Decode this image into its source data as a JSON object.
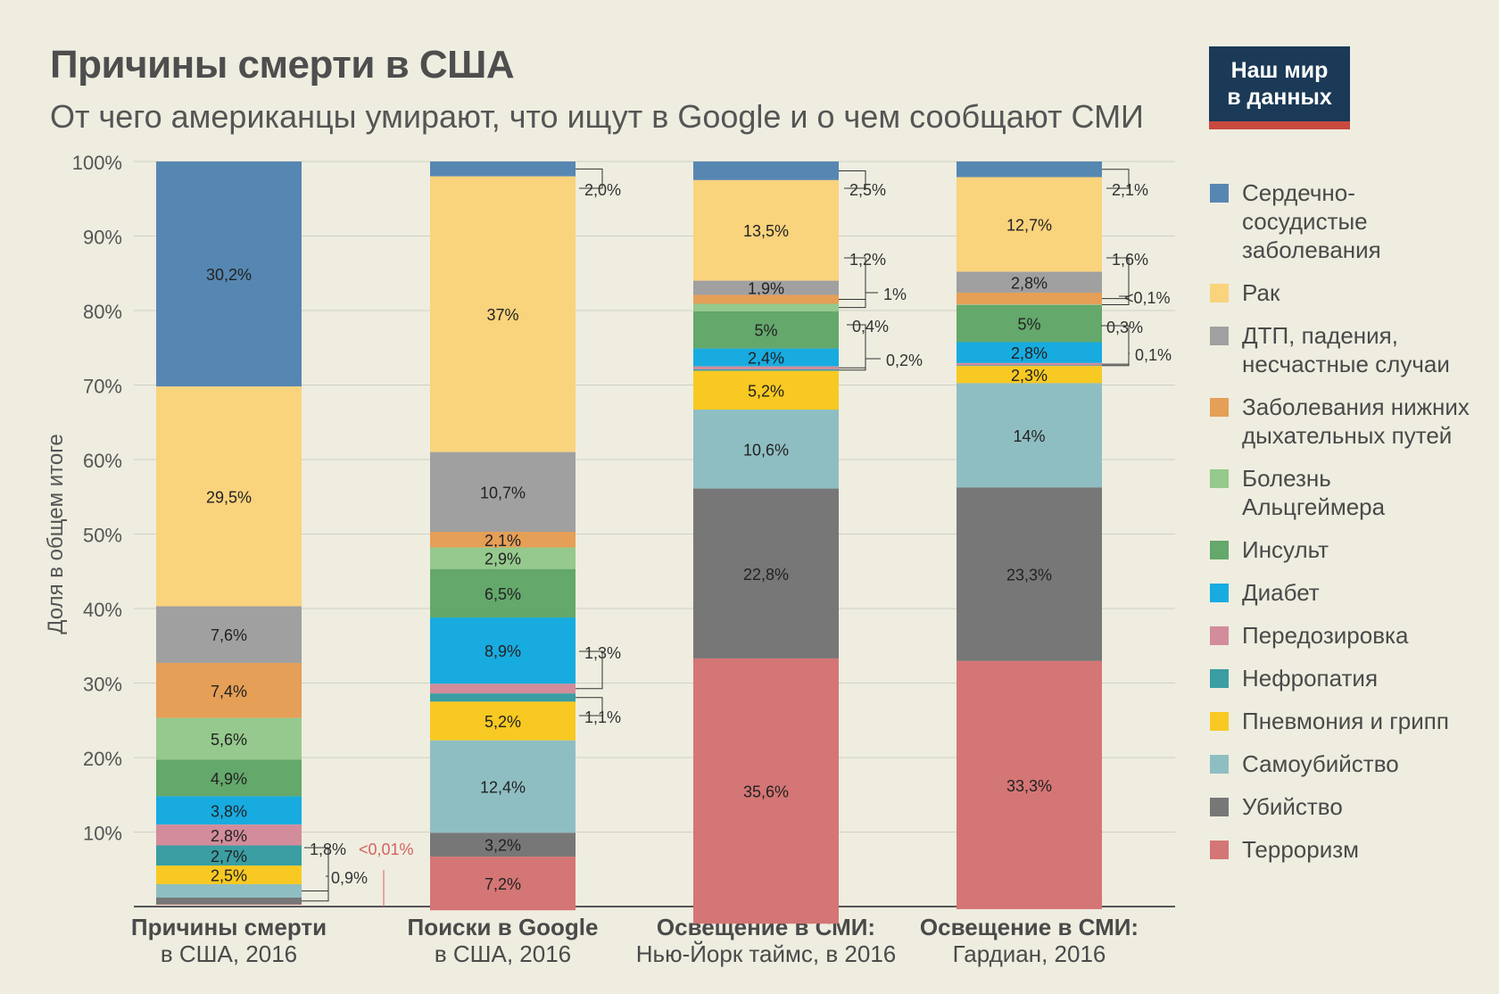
{
  "header": {
    "title": "Причины смерти в США",
    "subtitle": "От чего американцы умирают, что ищут в Google и о чем сообщают СМИ",
    "brand_line1": "Наш мир",
    "brand_line2": "в данных"
  },
  "legend": [
    {
      "label": "Сердечно-\nсосудистые\nзаболевания",
      "color": "#5687b2"
    },
    {
      "label": "Рак",
      "color": "#fad37d"
    },
    {
      "label": "ДТП, падения,\nнесчастные случаи",
      "color": "#a0a0a0"
    },
    {
      "label": "Заболевания нижних\nдыхательных путей",
      "color": "#e59f57"
    },
    {
      "label": "Болезнь\nАльцгеймера",
      "color": "#95c98d"
    },
    {
      "label": "Инсульт",
      "color": "#64a86b"
    },
    {
      "label": "Диабет",
      "color": "#18abe0"
    },
    {
      "label": "Передозировка",
      "color": "#d28c9b"
    },
    {
      "label": "Нефропатия",
      "color": "#3a9ea2"
    },
    {
      "label": "Пневмония и грипп",
      "color": "#f8c922"
    },
    {
      "label": "Самоубийство",
      "color": "#8fbec2"
    },
    {
      "label": "Убийство",
      "color": "#777777"
    },
    {
      "label": "Терроризм",
      "color": "#d47675"
    }
  ],
  "chart_data": {
    "type": "bar",
    "stacked": true,
    "ylabel": "Доля в общем итоге",
    "ylim": [
      0,
      100
    ],
    "yticks": [
      "10%",
      "20%",
      "30%",
      "40%",
      "50%",
      "60%",
      "70%",
      "80%",
      "90%",
      "100%"
    ],
    "categories": [
      [
        "Причины смерти",
        "в США, 2016"
      ],
      [
        "Поиски в Google",
        "в США, 2016"
      ],
      [
        "Освещение в СМИ:",
        "Нью-Йорк таймс, в 2016"
      ],
      [
        "Освещение в СМИ:",
        "Гардиан, 2016"
      ]
    ],
    "series": [
      {
        "name": "Сердечно-сосудистые заболевания",
        "values": [
          30.2,
          2.0,
          2.5,
          2.1
        ],
        "labels": [
          "30,2%",
          "2,0%",
          "2,5%",
          "2,1%"
        ]
      },
      {
        "name": "Рак",
        "values": [
          29.5,
          37.0,
          13.5,
          12.7
        ],
        "labels": [
          "29,5%",
          "37%",
          "13,5%",
          "12,7%"
        ]
      },
      {
        "name": "ДТП, падения, несчастные случаи",
        "values": [
          7.6,
          10.7,
          1.9,
          2.8
        ],
        "labels": [
          "7,6%",
          "10,7%",
          "1,9%",
          "2,8%"
        ]
      },
      {
        "name": "Заболевания нижних дыхательных путей",
        "values": [
          7.4,
          2.1,
          1.2,
          1.6
        ],
        "labels": [
          "7,4%",
          "2,1%",
          "1,2%",
          "1,6%"
        ]
      },
      {
        "name": "Болезнь Альцгеймера",
        "values": [
          5.6,
          2.9,
          1.0,
          0.05
        ],
        "labels": [
          "5,6%",
          "2,9%",
          "1%",
          "<0,1%"
        ]
      },
      {
        "name": "Инсульт",
        "values": [
          4.9,
          6.5,
          5.0,
          5.0
        ],
        "labels": [
          "4,9%",
          "6,5%",
          "5%",
          "5%"
        ]
      },
      {
        "name": "Диабет",
        "values": [
          3.8,
          8.9,
          2.4,
          2.8
        ],
        "labels": [
          "3,8%",
          "8,9%",
          "2,4%",
          "2,8%"
        ]
      },
      {
        "name": "Передозировка",
        "values": [
          2.8,
          1.3,
          0.4,
          0.3
        ],
        "labels": [
          "2,8%",
          "1,3%",
          "0,4%",
          "0,3%"
        ]
      },
      {
        "name": "Нефропатия",
        "values": [
          2.7,
          1.1,
          0.2,
          0.1
        ],
        "labels": [
          "2,7%",
          "1,1%",
          "0,2%",
          "0,1%"
        ]
      },
      {
        "name": "Пневмония и грипп",
        "values": [
          2.5,
          5.2,
          5.2,
          2.3
        ],
        "labels": [
          "2,5%",
          "5,2%",
          "5,2%",
          "2,3%"
        ]
      },
      {
        "name": "Самоубийство",
        "values": [
          1.8,
          12.4,
          10.6,
          14.0
        ],
        "labels": [
          "1,8%",
          "12,4%",
          "10,6%",
          "14%"
        ]
      },
      {
        "name": "Убийство",
        "values": [
          0.9,
          3.2,
          22.8,
          23.3
        ],
        "labels": [
          "0,9%",
          "3,2%",
          "22,8%",
          "23,3%"
        ]
      },
      {
        "name": "Терроризм",
        "values": [
          0.005,
          7.2,
          35.6,
          33.3
        ],
        "labels": [
          "<0,01%",
          "7,2%",
          "35,6%",
          "33,3%"
        ]
      }
    ],
    "grid": true,
    "legend_position": "right"
  }
}
